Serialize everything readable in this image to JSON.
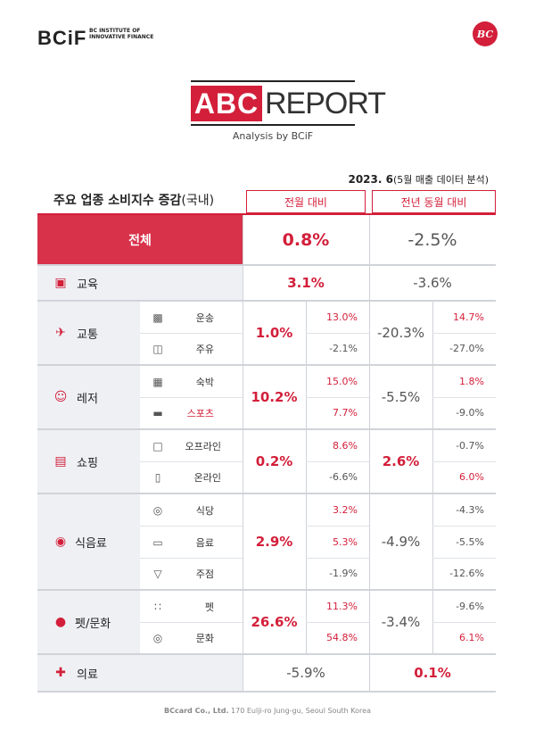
{
  "header": {
    "logo": "BCiF",
    "logo_sub": "BC INSTITUTE OF INNOVATIVE FINANCE",
    "badge": "BC",
    "report_abc": "ABC",
    "report_word": "REPORT",
    "report_by": "Analysis by BCiF",
    "date_main": "2023. 6",
    "date_note": "(5월 매출 데이터 분석)"
  },
  "table": {
    "title": "주요 업종 소비지수 증감",
    "title_suffix": "(국내)",
    "col_mom": "전월 대비",
    "col_yoy": "전년 동월 대비",
    "total": {
      "label": "전체",
      "mom": "0.8%",
      "yoy": "-2.5%"
    },
    "education": {
      "label": "교육",
      "mom": "3.1%",
      "yoy": "-3.6%"
    },
    "transport": {
      "label": "교통",
      "mom": "1.0%",
      "yoy": "-20.3%",
      "subs": [
        {
          "label": "운송",
          "mom": "13.0%",
          "yoy": "14.7%"
        },
        {
          "label": "주유",
          "mom": "-2.1%",
          "yoy": "-27.0%"
        }
      ]
    },
    "leisure": {
      "label": "레저",
      "mom": "10.2%",
      "yoy": "-5.5%",
      "subs": [
        {
          "label": "숙박",
          "mom": "15.0%",
          "yoy": "1.8%"
        },
        {
          "label": "스포츠",
          "mom": "7.7%",
          "yoy": "-9.0%"
        }
      ]
    },
    "shopping": {
      "label": "쇼핑",
      "mom": "0.2%",
      "yoy": "2.6%",
      "subs": [
        {
          "label": "오프라인",
          "mom": "8.6%",
          "yoy": "-0.7%"
        },
        {
          "label": "온라인",
          "mom": "-6.6%",
          "yoy": "6.0%"
        }
      ]
    },
    "food": {
      "label": "식음료",
      "mom": "2.9%",
      "yoy": "-4.9%",
      "subs": [
        {
          "label": "식당",
          "mom": "3.2%",
          "yoy": "-4.3%"
        },
        {
          "label": "음료",
          "mom": "5.3%",
          "yoy": "-5.5%"
        },
        {
          "label": "주점",
          "mom": "-1.9%",
          "yoy": "-12.6%"
        }
      ]
    },
    "pet": {
      "label": "펫/문화",
      "mom": "26.6%",
      "yoy": "-3.4%",
      "subs": [
        {
          "label": "펫",
          "mom": "11.3%",
          "yoy": "-9.6%"
        },
        {
          "label": "문화",
          "mom": "54.8%",
          "yoy": "6.1%"
        }
      ]
    },
    "medical": {
      "label": "의료",
      "mom": "-5.9%",
      "yoy": "0.1%"
    }
  },
  "footer": {
    "company": "BCcard Co., Ltd.",
    "address": "170 Eulji-ro Jung-gu, Seoul South Korea"
  },
  "colors": {
    "accent": "#d31f3a",
    "category_bg": "#eef0f4"
  }
}
